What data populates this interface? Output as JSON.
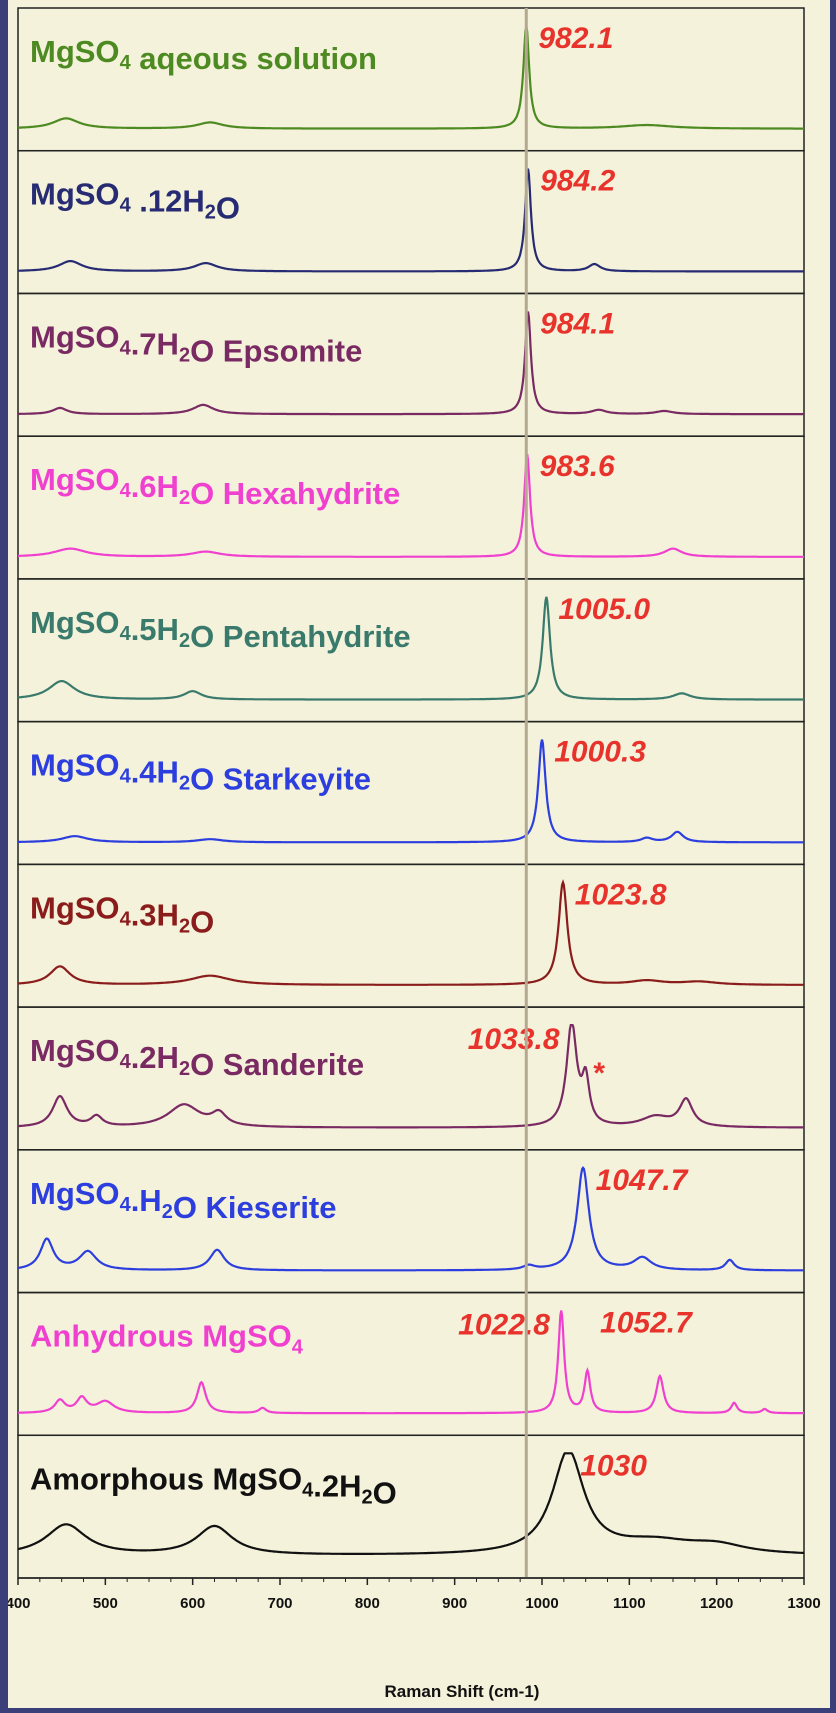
{
  "chart_data": {
    "type": "line",
    "title": "",
    "xlabel": "Raman Shift (cm-1)",
    "ylabel": "",
    "xlim": [
      400,
      1300
    ],
    "x_ticks": [
      "400",
      "500",
      "600",
      "700",
      "800",
      "900",
      "1000",
      "1100",
      "1200",
      "1300"
    ],
    "reference_line_x": 982,
    "reference_line_color": "#b5a890",
    "background": "#f4f2da",
    "panels": [
      {
        "label": "MgSO₄ aqeous solution",
        "color": "#4e8a22",
        "peaks": [
          {
            "x": 982.1,
            "text": "982.1"
          }
        ],
        "bands": [
          [
            455,
            0.1,
            18
          ],
          [
            620,
            0.06,
            18
          ],
          [
            982,
            1.0,
            4
          ],
          [
            1120,
            0.035,
            35
          ]
        ]
      },
      {
        "label": "MgSO₄ .12H₂O",
        "color": "#262b73",
        "peaks": [
          {
            "x": 984.2,
            "text": "984.2"
          }
        ],
        "bands": [
          [
            460,
            0.1,
            16
          ],
          [
            615,
            0.08,
            16
          ],
          [
            984,
            1.0,
            4
          ],
          [
            1060,
            0.07,
            8
          ]
        ]
      },
      {
        "label": "MgSO₄.7H₂O Epsomite",
        "color": "#7a2a63",
        "peaks": [
          {
            "x": 984.1,
            "text": "984.1"
          }
        ],
        "bands": [
          [
            448,
            0.06,
            10
          ],
          [
            612,
            0.09,
            14
          ],
          [
            984,
            1.0,
            4
          ],
          [
            1065,
            0.04,
            10
          ],
          [
            1140,
            0.03,
            12
          ]
        ]
      },
      {
        "label": "MgSO₄.6H₂O Hexahydrite",
        "color": "#f040d0",
        "peaks": [
          {
            "x": 983.6,
            "text": "983.6"
          }
        ],
        "bands": [
          [
            460,
            0.08,
            22
          ],
          [
            615,
            0.05,
            20
          ],
          [
            983,
            1.0,
            4
          ],
          [
            1150,
            0.08,
            12
          ]
        ]
      },
      {
        "label": "MgSO₄.5H₂O Pentahydrite",
        "color": "#3a7a6c",
        "peaks": [
          {
            "x": 1005.0,
            "text": "1005.0"
          }
        ],
        "bands": [
          [
            450,
            0.18,
            18
          ],
          [
            600,
            0.08,
            12
          ],
          [
            1005,
            1.0,
            5
          ],
          [
            1160,
            0.06,
            12
          ]
        ]
      },
      {
        "label": "MgSO₄.4H₂O Starkeyite",
        "color": "#2c3fde",
        "peaks": [
          {
            "x": 1000.3,
            "text": "1000.3"
          }
        ],
        "bands": [
          [
            465,
            0.06,
            18
          ],
          [
            620,
            0.03,
            18
          ],
          [
            1000,
            1.0,
            5
          ],
          [
            1120,
            0.04,
            8
          ],
          [
            1155,
            0.1,
            8
          ]
        ]
      },
      {
        "label": "MgSO₄.3H₂O",
        "color": "#8a1c1c",
        "peaks": [
          {
            "x": 1023.8,
            "text": "1023.8"
          }
        ],
        "bands": [
          [
            448,
            0.18,
            14
          ],
          [
            620,
            0.09,
            28
          ],
          [
            1024,
            1.0,
            6
          ],
          [
            1120,
            0.04,
            22
          ],
          [
            1180,
            0.03,
            25
          ]
        ]
      },
      {
        "label": "MgSO₄.2H₂O Sanderite",
        "color": "#7a2a63",
        "peaks": [
          {
            "x": 1033.8,
            "text": "1033.8"
          },
          {
            "x": 1062,
            "text": "*"
          }
        ],
        "bands": [
          [
            448,
            0.3,
            10
          ],
          [
            490,
            0.1,
            8
          ],
          [
            590,
            0.22,
            22
          ],
          [
            630,
            0.12,
            10
          ],
          [
            1034,
            1.0,
            7
          ],
          [
            1050,
            0.42,
            5
          ],
          [
            1130,
            0.1,
            20
          ],
          [
            1165,
            0.26,
            9
          ]
        ]
      },
      {
        "label": "MgSO₄.H₂O Kieserite",
        "color": "#2c3fde",
        "peaks": [
          {
            "x": 1047.7,
            "text": "1047.7"
          }
        ],
        "bands": [
          [
            433,
            0.3,
            9
          ],
          [
            480,
            0.18,
            12
          ],
          [
            628,
            0.2,
            10
          ],
          [
            985,
            0.04,
            8
          ],
          [
            1047,
            1.0,
            8
          ],
          [
            1115,
            0.12,
            12
          ],
          [
            1215,
            0.1,
            6
          ]
        ]
      },
      {
        "label": "Anhydrous MgSO₄",
        "color": "#f040d0",
        "peaks": [
          {
            "x": 1022.8,
            "text": "1022.8"
          },
          {
            "x": 1052.7,
            "text": "1052.7"
          }
        ],
        "bands": [
          [
            448,
            0.12,
            7
          ],
          [
            473,
            0.14,
            7
          ],
          [
            500,
            0.11,
            12
          ],
          [
            610,
            0.3,
            6
          ],
          [
            680,
            0.05,
            5
          ],
          [
            1022,
            1.0,
            4
          ],
          [
            1052,
            0.4,
            4
          ],
          [
            1135,
            0.36,
            5
          ],
          [
            1220,
            0.1,
            4
          ],
          [
            1255,
            0.04,
            4
          ]
        ]
      },
      {
        "label": "Amorphous MgSO₄.2H₂O",
        "color": "#111111",
        "peaks": [
          {
            "x": 1030,
            "text": "1030"
          }
        ],
        "bands": [
          [
            455,
            0.3,
            28
          ],
          [
            625,
            0.28,
            25
          ],
          [
            1030,
            1.0,
            22
          ],
          [
            1130,
            0.12,
            55
          ],
          [
            1200,
            0.08,
            40
          ]
        ]
      }
    ]
  }
}
